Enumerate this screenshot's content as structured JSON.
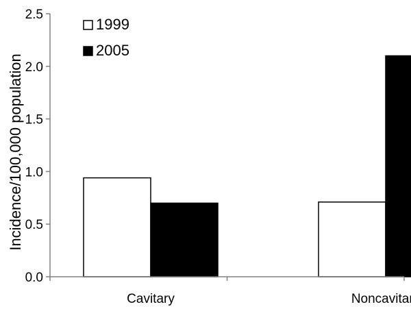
{
  "chart_data": {
    "type": "bar",
    "categories": [
      "Cavitary",
      "Noncavitary"
    ],
    "series": [
      {
        "name": "1999",
        "values": [
          0.94,
          0.71
        ],
        "fill": "#ffffff",
        "stroke": "#000000"
      },
      {
        "name": "2005",
        "values": [
          0.7,
          2.1
        ],
        "fill": "#000000",
        "stroke": "#000000"
      }
    ],
    "title": "",
    "xlabel": "",
    "ylabel": "Incidence/100,000 population",
    "ylim": [
      0,
      2.5
    ],
    "yticks": [
      "0.0",
      "0.5",
      "1.0",
      "1.5",
      "2.0",
      "2.5"
    ],
    "grid": false,
    "legend_position": "top-left"
  }
}
